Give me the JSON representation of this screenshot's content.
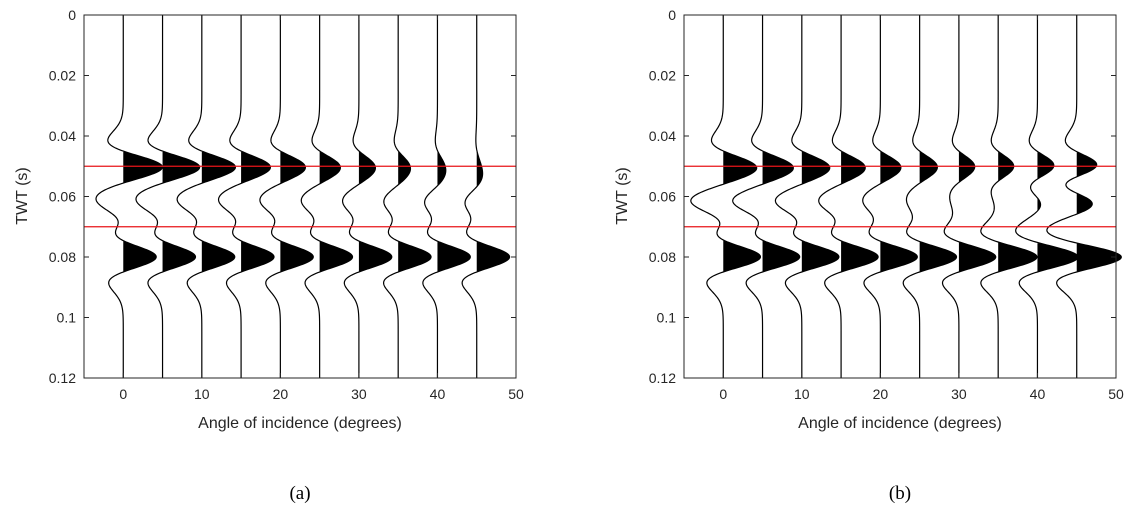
{
  "chart_data": [
    {
      "type": "wiggle",
      "caption": "(a)",
      "xlabel": "Angle of incidence (degrees)",
      "ylabel": "TWT (s)",
      "xlim": [
        -5,
        50
      ],
      "ylim": [
        0,
        0.12
      ],
      "y_reversed": true,
      "xticks": [
        0,
        10,
        20,
        30,
        40,
        50
      ],
      "yticks": [
        0,
        0.02,
        0.04,
        0.06,
        0.08,
        0.1,
        0.12
      ],
      "ytick_labels": [
        "0",
        "0.02",
        "0.04",
        "0.06",
        "0.08",
        "0.1",
        "0.12"
      ],
      "trace_angles": [
        0,
        5,
        10,
        15,
        20,
        25,
        30,
        35,
        40,
        45
      ],
      "trace_color": "#000000",
      "fill_positive": true,
      "reflection_times": [
        {
          "value": 0.05,
          "color": "#e8141a"
        },
        {
          "value": 0.07,
          "color": "#e8141a"
        }
      ],
      "traces": [
        {
          "angle": 0,
          "amplitudes": [
            0.85,
            -0.4,
            0.8
          ]
        },
        {
          "angle": 5,
          "amplitudes": [
            0.8,
            -0.4,
            0.8
          ]
        },
        {
          "angle": 10,
          "amplitudes": [
            0.72,
            -0.38,
            0.8
          ]
        },
        {
          "angle": 15,
          "amplitudes": [
            0.62,
            -0.36,
            0.8
          ]
        },
        {
          "angle": 20,
          "amplitudes": [
            0.52,
            -0.34,
            0.8
          ]
        },
        {
          "angle": 25,
          "amplitudes": [
            0.42,
            -0.32,
            0.8
          ]
        },
        {
          "angle": 30,
          "amplitudes": [
            0.32,
            -0.3,
            0.8
          ]
        },
        {
          "angle": 35,
          "amplitudes": [
            0.22,
            -0.28,
            0.8
          ]
        },
        {
          "angle": 40,
          "amplitudes": [
            0.12,
            -0.27,
            0.8
          ]
        },
        {
          "angle": 45,
          "amplitudes": [
            0.05,
            -0.26,
            0.8
          ]
        }
      ]
    },
    {
      "type": "wiggle",
      "caption": "(b)",
      "xlabel": "Angle of incidence (degrees)",
      "ylabel": "TWT (s)",
      "xlim": [
        -5,
        50
      ],
      "ylim": [
        0,
        0.12
      ],
      "y_reversed": true,
      "xticks": [
        0,
        10,
        20,
        30,
        40,
        50
      ],
      "yticks": [
        0,
        0.02,
        0.04,
        0.06,
        0.08,
        0.1,
        0.12
      ],
      "ytick_labels": [
        "0",
        "0.02",
        "0.04",
        "0.06",
        "0.08",
        "0.1",
        "0.12"
      ],
      "trace_angles": [
        0,
        5,
        10,
        15,
        20,
        25,
        30,
        35,
        40,
        45
      ],
      "trace_color": "#000000",
      "fill_positive": true,
      "reflection_times": [
        {
          "value": 0.05,
          "color": "#e8141a"
        },
        {
          "value": 0.07,
          "color": "#e8141a"
        }
      ],
      "traces": [
        {
          "angle": 0,
          "amplitudes": [
            0.65,
            -0.6,
            0.9
          ]
        },
        {
          "angle": 5,
          "amplitudes": [
            0.6,
            -0.55,
            0.9
          ]
        },
        {
          "angle": 10,
          "amplitudes": [
            0.55,
            -0.48,
            0.9
          ]
        },
        {
          "angle": 15,
          "amplitudes": [
            0.48,
            -0.4,
            0.9
          ]
        },
        {
          "angle": 20,
          "amplitudes": [
            0.42,
            -0.3,
            0.9
          ]
        },
        {
          "angle": 25,
          "amplitudes": [
            0.38,
            -0.2,
            0.9
          ]
        },
        {
          "angle": 30,
          "amplitudes": [
            0.36,
            -0.1,
            0.9
          ]
        },
        {
          "angle": 35,
          "amplitudes": [
            0.38,
            0.0,
            0.95
          ]
        },
        {
          "angle": 40,
          "amplitudes": [
            0.45,
            0.2,
            1.0
          ]
        },
        {
          "angle": 45,
          "amplitudes": [
            0.62,
            0.55,
            1.1
          ]
        }
      ]
    }
  ]
}
